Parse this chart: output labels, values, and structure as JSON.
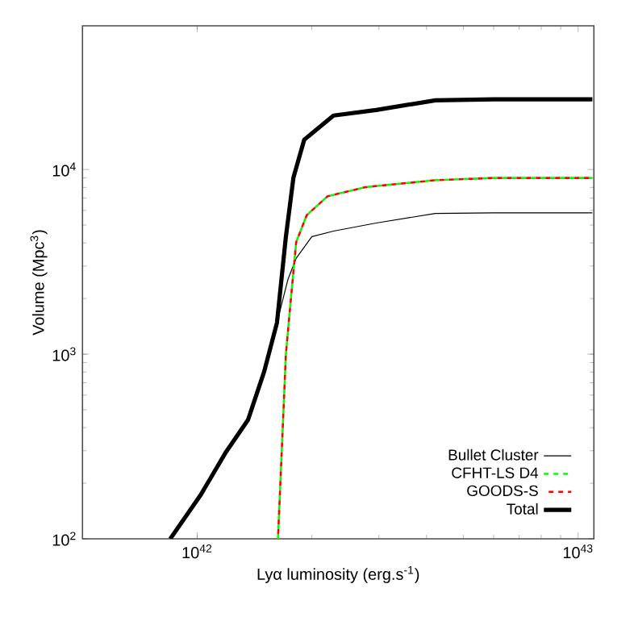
{
  "chart_data": {
    "type": "line",
    "xlabel": "Lyα luminosity (erg.s$^{-1}$)",
    "ylabel": "Volume (Mpc$^{3}$)",
    "log": "xy",
    "xlim": [
      5e+41,
      1.1e+43
    ],
    "ylim": [
      100,
      60000
    ],
    "xticks": [
      {
        "value": 1e+42,
        "label": "10$^{42}$"
      },
      {
        "value": 1e+43,
        "label": "10$^{43}$"
      }
    ],
    "yticks": [
      {
        "value": 100,
        "label": "10$^{2}$"
      },
      {
        "value": 1000,
        "label": "10$^{3}$"
      },
      {
        "value": 10000,
        "label": "10$^{4}$"
      }
    ],
    "grid": false,
    "legend": "bottom right",
    "marker": "none",
    "series": [
      {
        "name": "Bullet Cluster",
        "color": "#000000",
        "line_style": "solid",
        "x": [
          8.5e+41,
          1.02e+42,
          1.19e+42,
          1.36e+42,
          1.5e+42,
          1.62e+42,
          1.73e+42,
          1.82e+42,
          2e+42,
          2.28e+42,
          2.95e+42,
          4.22e+42,
          6e+42,
          1.09e+43
        ],
        "values": [
          100,
          172,
          295,
          441,
          807,
          1480,
          2530,
          3310,
          4330,
          4640,
          5130,
          5780,
          5820,
          5820
        ]
      },
      {
        "name": "CFHT-LS D4",
        "color": "#00ff00",
        "line_style": "dashed",
        "x": [
          1.63e+42,
          1.71e+42,
          1.76e+42,
          1.82e+42,
          1.94e+42,
          2.2e+42,
          2.77e+42,
          4.22e+42,
          6e+42,
          1.09e+43
        ],
        "values": [
          100,
          1000,
          1930,
          4050,
          5660,
          7160,
          8030,
          8750,
          9000,
          9000
        ]
      },
      {
        "name": "GOODS-S",
        "color": "#ff0000",
        "line_style": "dashed",
        "x": [
          1.63e+42,
          1.71e+42,
          1.76e+42,
          1.82e+42,
          1.94e+42,
          2.2e+42,
          2.77e+42,
          4.22e+42,
          6e+42,
          1.09e+43
        ],
        "values": [
          100,
          1000,
          1930,
          4050,
          5660,
          7160,
          8030,
          8750,
          9000,
          9000
        ]
      },
      {
        "name": "Total",
        "color": "#000000",
        "line_style": "solid",
        "x": [
          8.5e+41,
          1.02e+42,
          1.19e+42,
          1.36e+42,
          1.5e+42,
          1.62e+42,
          1.71e+42,
          1.79e+42,
          1.91e+42,
          2.28e+42,
          2.95e+42,
          4.22e+42,
          6.03e+42,
          1.09e+43
        ],
        "values": [
          100,
          172,
          295,
          441,
          807,
          1480,
          4330,
          9060,
          14500,
          19600,
          21000,
          23700,
          24000,
          24000
        ]
      }
    ]
  }
}
